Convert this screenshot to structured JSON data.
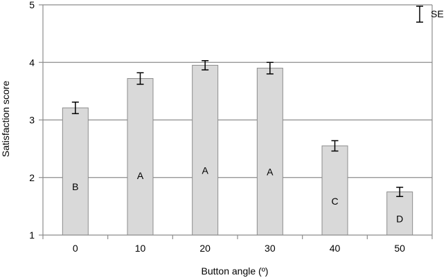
{
  "chart_data": {
    "type": "bar",
    "categories": [
      "0",
      "10",
      "20",
      "30",
      "40",
      "50"
    ],
    "values": [
      3.21,
      3.72,
      3.95,
      3.9,
      2.55,
      1.75
    ],
    "errors": [
      0.1,
      0.1,
      0.08,
      0.1,
      0.09,
      0.08
    ],
    "group_labels": [
      "B",
      "A",
      "A",
      "A",
      "C",
      "D"
    ],
    "xlabel": "Button angle (º)",
    "ylabel": "Satisfaction score",
    "ylim": [
      1,
      5
    ],
    "yticks": [
      "1",
      "2",
      "3",
      "4",
      "5"
    ],
    "grid": true,
    "legend": {
      "label": "SE",
      "placement": "top-right"
    },
    "colors": {
      "bar_fill": "#d9d9d9",
      "bar_stroke": "#8c8c8c",
      "grid": "#8c8c8c",
      "error": "#000000"
    }
  }
}
